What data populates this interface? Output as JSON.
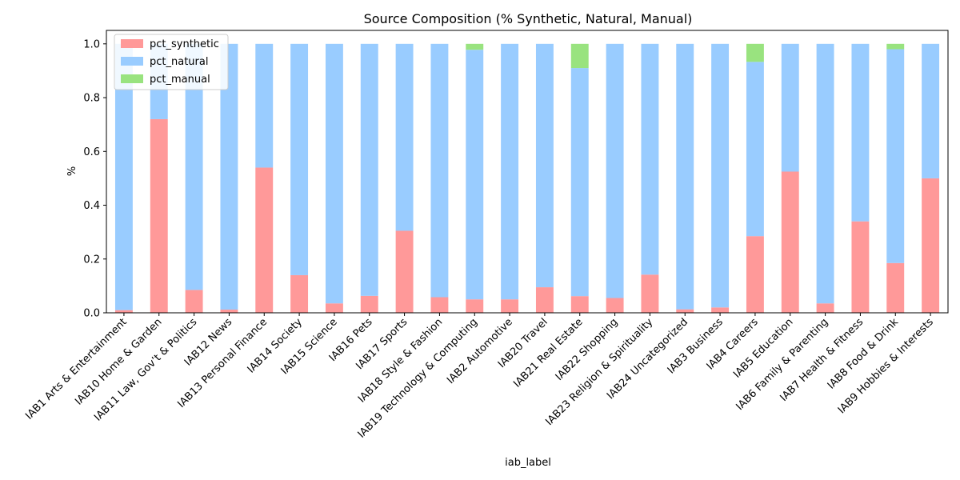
{
  "chart_data": {
    "type": "bar",
    "stacked": true,
    "title": "Source Composition (% Synthetic, Natural, Manual)",
    "xlabel": "iab_label",
    "ylabel": "%",
    "ylim": [
      0,
      1.05
    ],
    "yticks": [
      "0.0",
      "0.2",
      "0.4",
      "0.6",
      "0.8",
      "1.0"
    ],
    "legend_position": "top-left",
    "categories": [
      "IAB1 Arts & Entertainment",
      "IAB10 Home & Garden",
      "IAB11 Law, Gov’t & Politics",
      "IAB12 News",
      "IAB13 Personal Finance",
      "IAB14 Society",
      "IAB15 Science",
      "IAB16 Pets",
      "IAB17 Sports",
      "IAB18 Style & Fashion",
      "IAB19 Technology & Computing",
      "IAB2 Automotive",
      "IAB20 Travel",
      "IAB21 Real Estate",
      "IAB22 Shopping",
      "IAB23 Religion & Spirituality",
      "IAB24 Uncategorized",
      "IAB3 Business",
      "IAB4 Careers",
      "IAB5 Education",
      "IAB6 Family & Parenting",
      "IAB7 Health & Fitness",
      "IAB8 Food & Drink",
      "IAB9 Hobbies & Interests"
    ],
    "series": [
      {
        "name": "pct_synthetic",
        "color": "#ff9999",
        "values": [
          0.01,
          0.72,
          0.085,
          0.012,
          0.54,
          0.14,
          0.035,
          0.063,
          0.305,
          0.058,
          0.05,
          0.05,
          0.095,
          0.062,
          0.055,
          0.142,
          0.013,
          0.02,
          0.285,
          0.525,
          0.035,
          0.34,
          0.185,
          0.5
        ]
      },
      {
        "name": "pct_natural",
        "color": "#99ccff",
        "values": [
          0.99,
          0.28,
          0.915,
          0.988,
          0.46,
          0.86,
          0.965,
          0.937,
          0.695,
          0.942,
          0.928,
          0.95,
          0.905,
          0.848,
          0.945,
          0.858,
          0.987,
          0.98,
          0.648,
          0.475,
          0.965,
          0.66,
          0.795,
          0.5
        ]
      },
      {
        "name": "pct_manual",
        "color": "#99e37f",
        "values": [
          0,
          0,
          0,
          0,
          0,
          0,
          0,
          0,
          0,
          0,
          0.022,
          0,
          0,
          0.09,
          0,
          0,
          0,
          0,
          0.067,
          0,
          0,
          0,
          0.02,
          0
        ]
      }
    ]
  }
}
